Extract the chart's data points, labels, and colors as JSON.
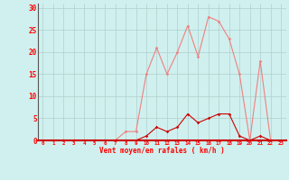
{
  "x": [
    0,
    1,
    2,
    3,
    4,
    5,
    6,
    7,
    8,
    9,
    10,
    11,
    12,
    13,
    14,
    15,
    16,
    17,
    18,
    19,
    20,
    21,
    22,
    23
  ],
  "rafales": [
    0,
    0,
    0,
    0,
    0,
    0,
    0,
    0,
    2,
    2,
    15,
    21,
    15,
    20,
    26,
    19,
    28,
    27,
    23,
    15,
    0,
    18,
    0,
    0
  ],
  "vent_moyen": [
    0,
    0,
    0,
    0,
    0,
    0,
    0,
    0,
    0,
    0,
    1,
    3,
    2,
    3,
    6,
    4,
    5,
    6,
    6,
    1,
    0,
    1,
    0,
    0
  ],
  "bg_color": "#cff0ee",
  "grid_color": "#b0d0ce",
  "line_color_rafales": "#f08080",
  "line_color_vent": "#cc0000",
  "xlabel": "Vent moyen/en rafales ( km/h )",
  "ylabel_ticks": [
    0,
    5,
    10,
    15,
    20,
    25,
    30
  ],
  "xlim": [
    -0.5,
    23.5
  ],
  "ylim": [
    0,
    31
  ],
  "figsize": [
    3.2,
    2.0
  ],
  "dpi": 100
}
